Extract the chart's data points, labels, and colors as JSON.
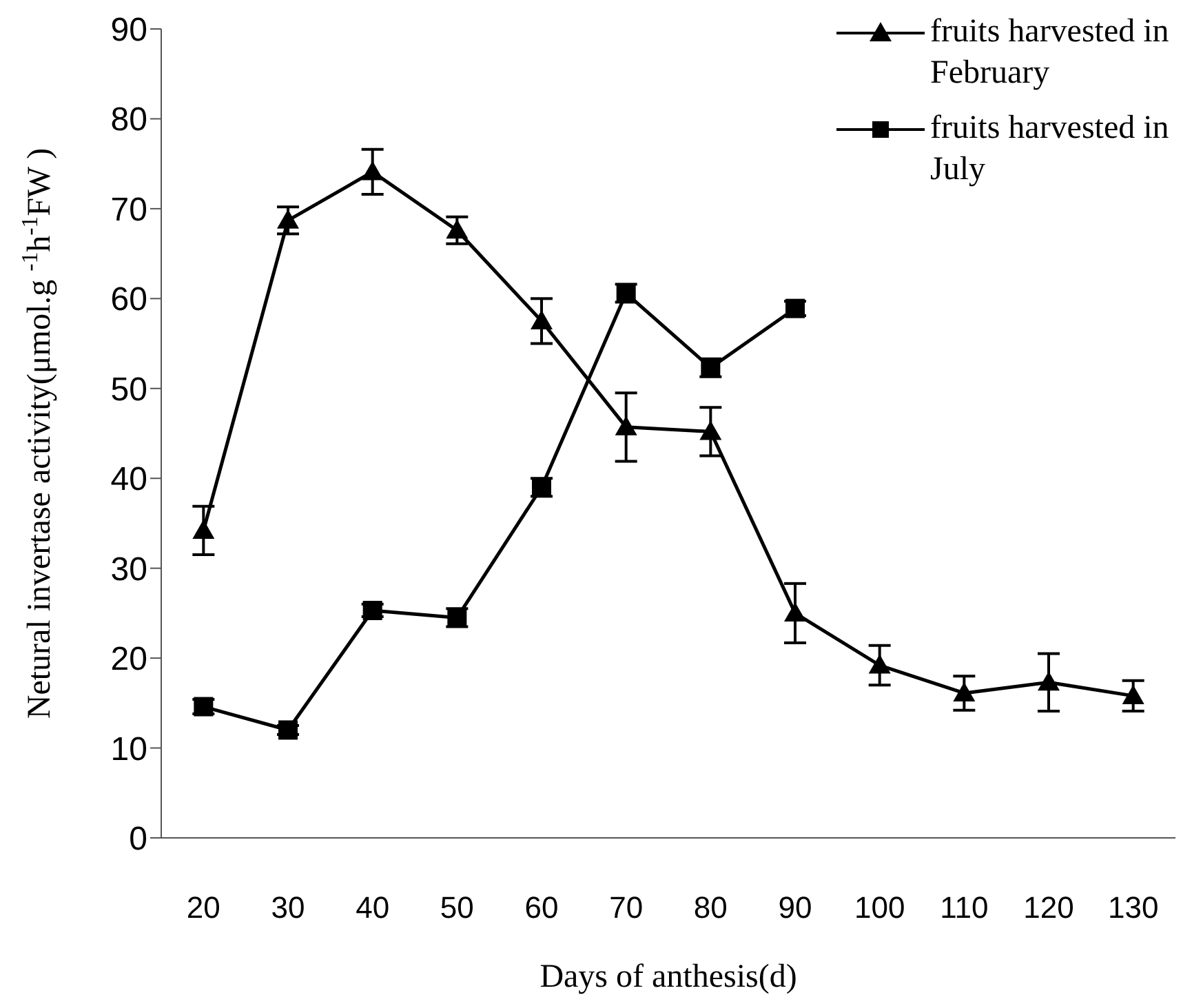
{
  "chart_data": {
    "type": "line",
    "xlabel": "Days of anthesis(d)",
    "ylabel": "Netural invertase activity(μmol.g $^{-1}$h$^{-1}$FW )",
    "categories": [
      "20",
      "30",
      "40",
      "50",
      "60",
      "70",
      "80",
      "90",
      "100",
      "110",
      "120",
      "130"
    ],
    "ylim": [
      0,
      90
    ],
    "yticks": [
      0,
      10,
      20,
      30,
      40,
      50,
      60,
      70,
      80,
      90
    ],
    "grid": false,
    "legend": "top right",
    "series": [
      {
        "name": "fruits harvested in February",
        "color": "#000000",
        "marker": "triangle",
        "values": [
          34.2,
          68.7,
          74.1,
          67.6,
          57.5,
          45.7,
          45.2,
          25.0,
          19.2,
          16.1,
          17.3,
          15.8
        ],
        "errors": [
          2.7,
          1.5,
          2.5,
          1.5,
          2.5,
          3.8,
          2.7,
          3.3,
          2.2,
          1.9,
          3.2,
          1.7
        ]
      },
      {
        "name": "fruits harvested in July",
        "color": "#000000",
        "marker": "square",
        "values": [
          14.6,
          12.0,
          25.3,
          24.5,
          39.0,
          60.6,
          52.3,
          58.9,
          null,
          null,
          null,
          null
        ],
        "errors": [
          0.8,
          0.5,
          0.7,
          1.0,
          1.0,
          1.0,
          1.0,
          0.8,
          null,
          null,
          null,
          null
        ]
      }
    ]
  }
}
